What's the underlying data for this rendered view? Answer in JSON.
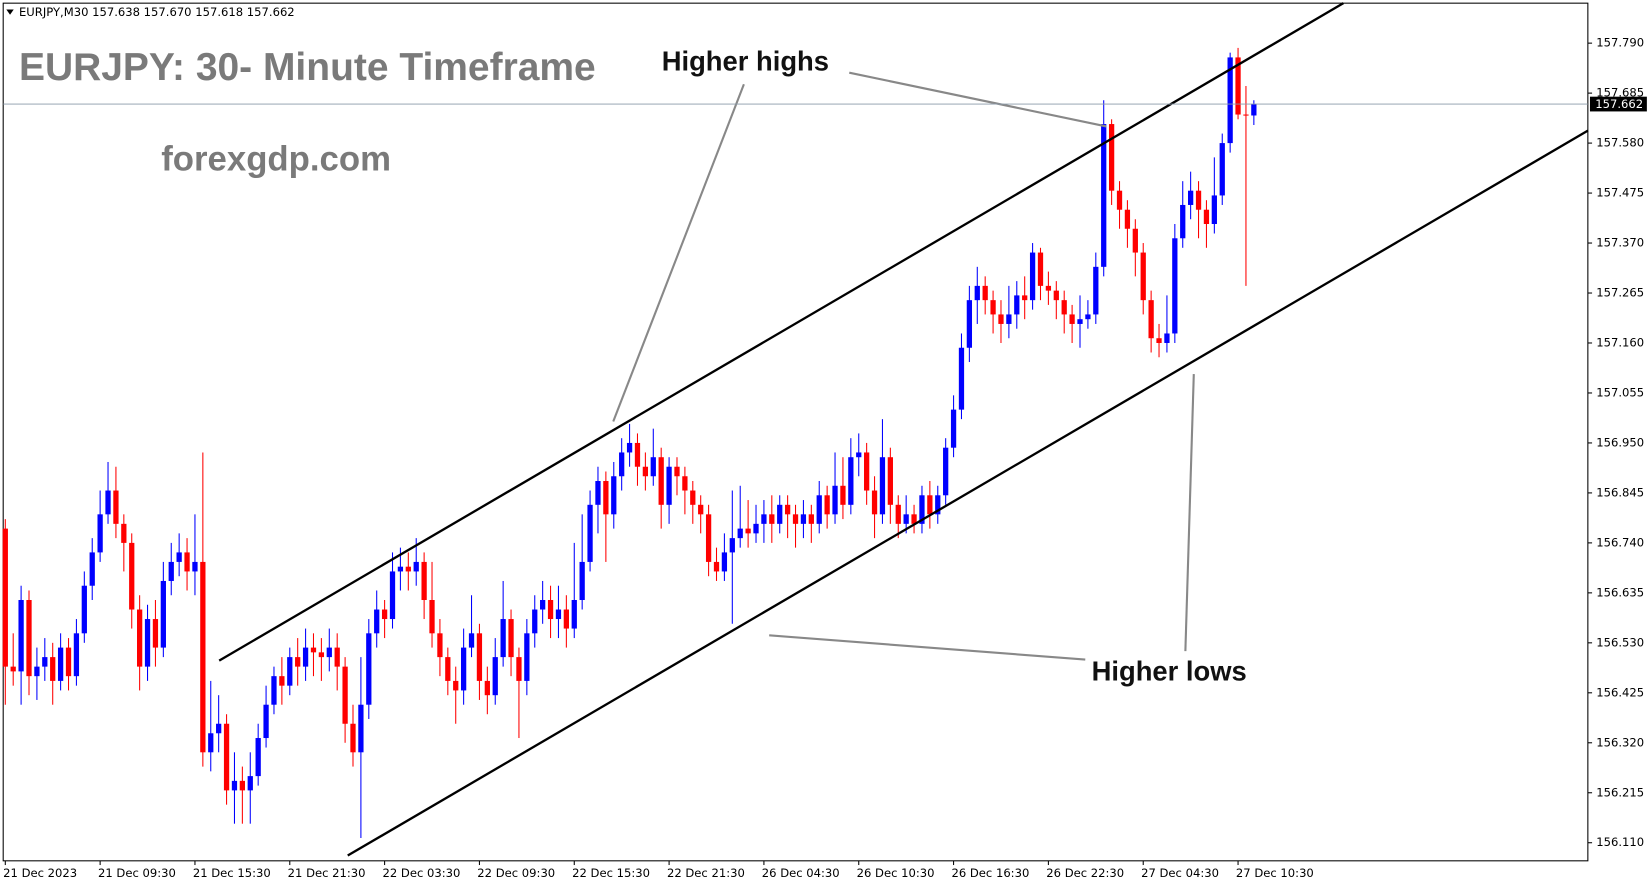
{
  "chart_data": {
    "type": "candlestick",
    "header": "EURJPY,M30  157.638 157.670 157.618 157.662",
    "title": "EURJPY: 30- Minute Timeframe",
    "subtitle": "forexgdp.com",
    "annotations": [
      "Higher highs",
      "Higher lows"
    ],
    "current_price": 157.662,
    "up_color": "#0000ff",
    "down_color": "#ff0000",
    "ylim": [
      156.072,
      157.874
    ],
    "yticks": [
      {
        "value": 157.79,
        "label": "157.790"
      },
      157.685,
      {
        "value": 157.58,
        "label": "157.580"
      },
      157.475,
      {
        "value": 157.37,
        "label": "157.370"
      },
      157.265,
      {
        "value": 157.16,
        "label": "157.160"
      },
      157.055,
      {
        "value": 156.95,
        "label": "156.950"
      },
      156.845,
      {
        "value": 156.74,
        "label": "156.740"
      },
      156.635,
      {
        "value": 156.53,
        "label": "156.530"
      },
      156.425,
      {
        "value": 156.32,
        "label": "156.320"
      },
      156.215,
      {
        "value": 156.11,
        "label": "156.110"
      }
    ],
    "x_labels": [
      "21 Dec 2023",
      "21 Dec 09:30",
      "21 Dec 15:30",
      "21 Dec 21:30",
      "22 Dec 03:30",
      "22 Dec 09:30",
      "22 Dec 15:30",
      "22 Dec 21:30",
      "26 Dec 04:30",
      "26 Dec 10:30",
      "26 Dec 16:30",
      "26 Dec 22:30",
      "27 Dec 04:30",
      "27 Dec 10:30"
    ],
    "candles": [
      [
        156.77,
        156.79,
        156.4,
        156.48
      ],
      [
        156.48,
        156.55,
        156.44,
        156.47
      ],
      [
        156.47,
        156.65,
        156.4,
        156.62
      ],
      [
        156.62,
        156.64,
        156.42,
        156.46
      ],
      [
        156.46,
        156.52,
        156.41,
        156.48
      ],
      [
        156.48,
        156.54,
        156.45,
        156.5
      ],
      [
        156.5,
        156.53,
        156.4,
        156.45
      ],
      [
        156.45,
        156.55,
        156.43,
        156.52
      ],
      [
        156.52,
        156.54,
        156.43,
        156.46
      ],
      [
        156.46,
        156.58,
        156.44,
        156.55
      ],
      [
        156.55,
        156.68,
        156.53,
        156.65
      ],
      [
        156.65,
        156.75,
        156.62,
        156.72
      ],
      [
        156.72,
        156.85,
        156.7,
        156.8
      ],
      [
        156.8,
        156.91,
        156.78,
        156.85
      ],
      [
        156.85,
        156.9,
        156.75,
        156.78
      ],
      [
        156.78,
        156.8,
        156.68,
        156.74
      ],
      [
        156.74,
        156.76,
        156.56,
        156.6
      ],
      [
        156.6,
        156.63,
        156.43,
        156.48
      ],
      [
        156.48,
        156.61,
        156.45,
        156.58
      ],
      [
        156.58,
        156.62,
        156.48,
        156.52
      ],
      [
        156.52,
        156.7,
        156.5,
        156.66
      ],
      [
        156.66,
        156.74,
        156.63,
        156.7
      ],
      [
        156.7,
        156.76,
        156.67,
        156.72
      ],
      [
        156.72,
        156.75,
        156.64,
        156.68
      ],
      [
        156.68,
        156.8,
        156.63,
        156.7
      ],
      [
        156.7,
        156.93,
        156.27,
        156.3
      ],
      [
        156.3,
        156.45,
        156.26,
        156.34
      ],
      [
        156.34,
        156.42,
        156.3,
        156.36
      ],
      [
        156.36,
        156.38,
        156.19,
        156.22
      ],
      [
        156.22,
        156.3,
        156.15,
        156.24
      ],
      [
        156.24,
        156.27,
        156.15,
        156.22
      ],
      [
        156.22,
        156.3,
        156.15,
        156.25
      ],
      [
        156.25,
        156.36,
        156.23,
        156.33
      ],
      [
        156.33,
        156.44,
        156.31,
        156.4
      ],
      [
        156.4,
        156.48,
        156.38,
        156.46
      ],
      [
        156.46,
        156.5,
        156.4,
        156.44
      ],
      [
        156.44,
        156.52,
        156.42,
        156.5
      ],
      [
        156.5,
        156.54,
        156.44,
        156.48
      ],
      [
        156.48,
        156.56,
        156.45,
        156.52
      ],
      [
        156.52,
        156.55,
        156.46,
        156.51
      ],
      [
        156.51,
        156.54,
        156.45,
        156.5
      ],
      [
        156.5,
        156.56,
        156.47,
        156.52
      ],
      [
        156.52,
        156.55,
        156.43,
        156.48
      ],
      [
        156.48,
        156.5,
        156.32,
        156.36
      ],
      [
        156.36,
        156.4,
        156.27,
        156.3
      ],
      [
        156.3,
        156.5,
        156.12,
        156.4
      ],
      [
        156.4,
        156.58,
        156.37,
        156.55
      ],
      [
        156.55,
        156.64,
        156.52,
        156.6
      ],
      [
        156.6,
        156.62,
        156.54,
        156.58
      ],
      [
        156.58,
        156.72,
        156.56,
        156.68
      ],
      [
        156.68,
        156.73,
        156.64,
        156.69
      ],
      [
        156.69,
        156.72,
        156.64,
        156.68
      ],
      [
        156.68,
        156.75,
        156.65,
        156.7
      ],
      [
        156.7,
        156.72,
        156.58,
        156.62
      ],
      [
        156.62,
        156.7,
        156.52,
        156.55
      ],
      [
        156.55,
        156.58,
        156.46,
        156.5
      ],
      [
        156.5,
        156.52,
        156.42,
        156.45
      ],
      [
        156.45,
        156.48,
        156.36,
        156.43
      ],
      [
        156.43,
        156.56,
        156.4,
        156.52
      ],
      [
        156.52,
        156.63,
        156.5,
        156.55
      ],
      [
        156.55,
        156.57,
        156.41,
        156.45
      ],
      [
        156.45,
        156.48,
        156.38,
        156.42
      ],
      [
        156.42,
        156.54,
        156.4,
        156.5
      ],
      [
        156.5,
        156.66,
        156.48,
        156.58
      ],
      [
        156.58,
        156.6,
        156.46,
        156.5
      ],
      [
        156.5,
        156.52,
        156.33,
        156.45
      ],
      [
        156.45,
        156.58,
        156.42,
        156.55
      ],
      [
        156.55,
        156.63,
        156.52,
        156.6
      ],
      [
        156.6,
        156.66,
        156.57,
        156.62
      ],
      [
        156.62,
        156.65,
        156.54,
        156.58
      ],
      [
        156.58,
        156.65,
        156.54,
        156.6
      ],
      [
        156.6,
        156.63,
        156.52,
        156.56
      ],
      [
        156.56,
        156.74,
        156.54,
        156.62
      ],
      [
        156.62,
        156.8,
        156.6,
        156.7
      ],
      [
        156.7,
        156.85,
        156.68,
        156.82
      ],
      [
        156.82,
        156.9,
        156.76,
        156.87
      ],
      [
        156.87,
        156.89,
        156.7,
        156.8
      ],
      [
        156.8,
        156.91,
        156.77,
        156.88
      ],
      [
        156.88,
        156.96,
        156.85,
        156.93
      ],
      [
        156.93,
        156.99,
        156.9,
        156.95
      ],
      [
        156.95,
        156.97,
        156.86,
        156.9
      ],
      [
        156.9,
        156.93,
        156.85,
        156.88
      ],
      [
        156.88,
        156.98,
        156.86,
        156.92
      ],
      [
        156.92,
        156.94,
        156.77,
        156.82
      ],
      [
        156.82,
        156.92,
        156.78,
        156.9
      ],
      [
        156.9,
        156.92,
        156.84,
        156.88
      ],
      [
        156.88,
        156.9,
        156.8,
        156.85
      ],
      [
        156.85,
        156.87,
        156.78,
        156.82
      ],
      [
        156.82,
        156.84,
        156.76,
        156.8
      ],
      [
        156.8,
        156.82,
        156.67,
        156.7
      ],
      [
        156.7,
        156.73,
        156.66,
        156.68
      ],
      [
        156.68,
        156.76,
        156.66,
        156.72
      ],
      [
        156.72,
        156.85,
        156.57,
        156.75
      ],
      [
        156.75,
        156.86,
        156.73,
        156.77
      ],
      [
        156.77,
        156.83,
        156.73,
        156.76
      ],
      [
        156.76,
        156.82,
        156.74,
        156.78
      ],
      [
        156.78,
        156.83,
        156.74,
        156.8
      ],
      [
        156.8,
        156.84,
        156.74,
        156.78
      ],
      [
        156.78,
        156.84,
        156.76,
        156.82
      ],
      [
        156.82,
        156.84,
        156.75,
        156.8
      ],
      [
        156.8,
        156.82,
        156.73,
        156.78
      ],
      [
        156.78,
        156.83,
        156.75,
        156.8
      ],
      [
        156.8,
        156.82,
        156.74,
        156.78
      ],
      [
        156.78,
        156.87,
        156.76,
        156.84
      ],
      [
        156.84,
        156.86,
        156.77,
        156.8
      ],
      [
        156.8,
        156.93,
        156.78,
        156.86
      ],
      [
        156.86,
        156.92,
        156.79,
        156.82
      ],
      [
        156.82,
        156.96,
        156.8,
        156.92
      ],
      [
        156.92,
        156.97,
        156.88,
        156.93
      ],
      [
        156.93,
        156.95,
        156.82,
        156.85
      ],
      [
        156.85,
        156.88,
        156.75,
        156.8
      ],
      [
        156.8,
        157.0,
        156.78,
        156.92
      ],
      [
        156.92,
        156.94,
        156.78,
        156.82
      ],
      [
        156.82,
        156.84,
        156.75,
        156.78
      ],
      [
        156.78,
        156.84,
        156.76,
        156.8
      ],
      [
        156.8,
        156.82,
        156.76,
        156.78
      ],
      [
        156.78,
        156.86,
        156.76,
        156.84
      ],
      [
        156.84,
        156.87,
        156.77,
        156.8
      ],
      [
        156.8,
        156.86,
        156.78,
        156.84
      ],
      [
        156.84,
        156.96,
        156.82,
        156.94
      ],
      [
        156.94,
        157.05,
        156.92,
        157.02
      ],
      [
        157.02,
        157.18,
        157.0,
        157.15
      ],
      [
        157.15,
        157.28,
        157.12,
        157.25
      ],
      [
        157.25,
        157.32,
        157.2,
        157.28
      ],
      [
        157.28,
        157.3,
        157.22,
        157.25
      ],
      [
        157.25,
        157.27,
        157.18,
        157.22
      ],
      [
        157.22,
        157.25,
        157.16,
        157.2
      ],
      [
        157.2,
        157.28,
        157.17,
        157.22
      ],
      [
        157.22,
        157.29,
        157.19,
        157.26
      ],
      [
        157.26,
        157.3,
        157.21,
        157.25
      ],
      [
        157.25,
        157.37,
        157.23,
        157.35
      ],
      [
        157.35,
        157.36,
        157.25,
        157.28
      ],
      [
        157.28,
        157.31,
        157.24,
        157.27
      ],
      [
        157.27,
        157.29,
        157.21,
        157.25
      ],
      [
        157.25,
        157.27,
        157.18,
        157.22
      ],
      [
        157.22,
        157.24,
        157.16,
        157.2
      ],
      [
        157.2,
        157.26,
        157.15,
        157.21
      ],
      [
        157.21,
        157.25,
        157.19,
        157.22
      ],
      [
        157.22,
        157.35,
        157.2,
        157.32
      ],
      [
        157.32,
        157.67,
        157.3,
        157.62
      ],
      [
        157.62,
        157.63,
        157.45,
        157.48
      ],
      [
        157.48,
        157.5,
        157.4,
        157.44
      ],
      [
        157.44,
        157.46,
        157.36,
        157.4
      ],
      [
        157.4,
        157.42,
        157.3,
        157.35
      ],
      [
        157.35,
        157.37,
        157.22,
        157.25
      ],
      [
        157.25,
        157.27,
        157.14,
        157.17
      ],
      [
        157.17,
        157.2,
        157.13,
        157.16
      ],
      [
        157.16,
        157.26,
        157.14,
        157.18
      ],
      [
        157.18,
        157.41,
        157.16,
        157.38
      ],
      [
        157.38,
        157.5,
        157.36,
        157.45
      ],
      [
        157.45,
        157.52,
        157.42,
        157.48
      ],
      [
        157.48,
        157.5,
        157.38,
        157.44
      ],
      [
        157.44,
        157.46,
        157.36,
        157.41
      ],
      [
        157.41,
        157.55,
        157.39,
        157.47
      ],
      [
        157.47,
        157.6,
        157.45,
        157.58
      ],
      [
        157.58,
        157.77,
        157.56,
        157.76
      ],
      [
        157.76,
        157.78,
        157.63,
        157.64
      ],
      [
        157.64,
        157.7,
        157.28,
        157.638
      ],
      [
        157.638,
        157.67,
        157.618,
        157.662
      ]
    ]
  }
}
